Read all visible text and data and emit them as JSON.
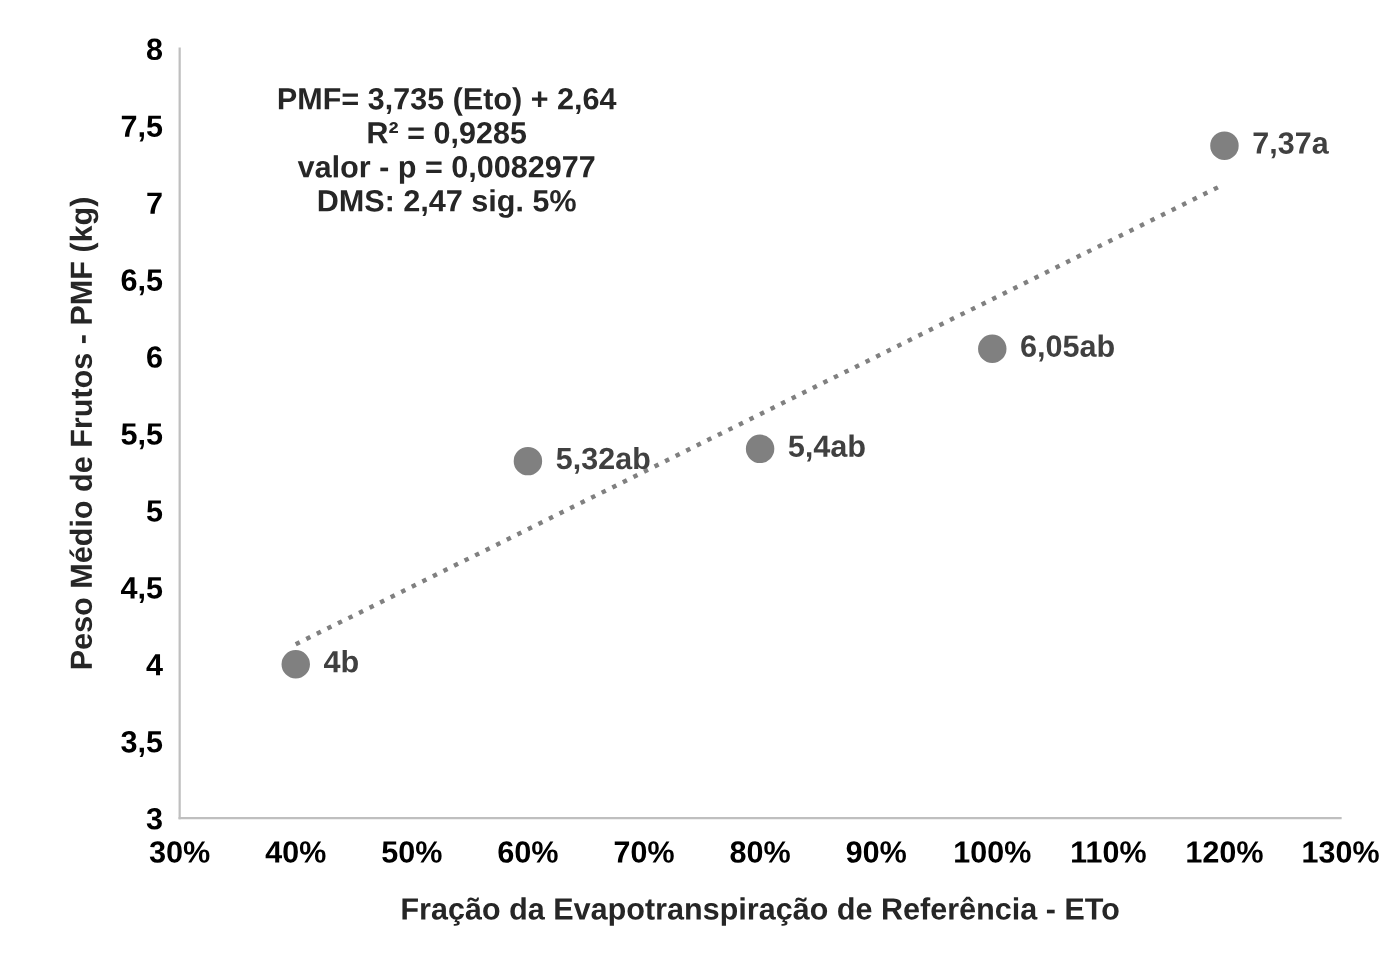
{
  "chart_data": {
    "type": "scatter",
    "xlabel": "Fração da Evapotranspiração de Referência - ETo",
    "ylabel": "Peso Médio de Frutos - PMF (kg)",
    "annotations": [
      "PMF= 3,735 (Eto) + 2,64",
      "R² = 0,9285",
      "valor - p = 0,0082977",
      "DMS: 2,47 sig. 5%"
    ],
    "series": [
      {
        "color": "#808080",
        "marker": "circle",
        "x": [
          0.4,
          0.6,
          0.8,
          1.0,
          1.2
        ],
        "values": [
          4,
          5.32,
          5.4,
          6.05,
          7.37
        ],
        "value_labels": [
          "4b",
          "5,32ab",
          "5,4ab",
          "6,05ab",
          "7,37a"
        ]
      },
      {
        "type": "line",
        "color": "#808080",
        "line_style": "dotted",
        "marker": "none",
        "x": [
          0.4,
          1.2
        ],
        "values": [
          4.13,
          7.12
        ]
      }
    ],
    "xlim": [
      0.3,
      1.3
    ],
    "xticks": [
      {
        "value": 0.3,
        "label": "30%"
      },
      {
        "value": 0.4,
        "label": "40%"
      },
      {
        "value": 0.5,
        "label": "50%"
      },
      {
        "value": 0.6,
        "label": "60%"
      },
      {
        "value": 0.7,
        "label": "70%"
      },
      {
        "value": 0.8,
        "label": "80%"
      },
      {
        "value": 0.9,
        "label": "90%"
      },
      {
        "value": 1.0,
        "label": "100%"
      },
      {
        "value": 1.1,
        "label": "110%"
      },
      {
        "value": 1.2,
        "label": "120%"
      },
      {
        "value": 1.3,
        "label": "130%"
      }
    ],
    "ylim": [
      3,
      8
    ],
    "yticks": [
      3,
      {
        "value": 3.5,
        "label": "3,5"
      },
      4,
      {
        "value": 4.5,
        "label": "4,5"
      },
      5,
      {
        "value": 5.5,
        "label": "5,5"
      },
      6,
      {
        "value": 6.5,
        "label": "6,5"
      },
      7,
      {
        "value": 7.5,
        "label": "7,5"
      },
      8
    ],
    "grid": false,
    "legend": false
  }
}
